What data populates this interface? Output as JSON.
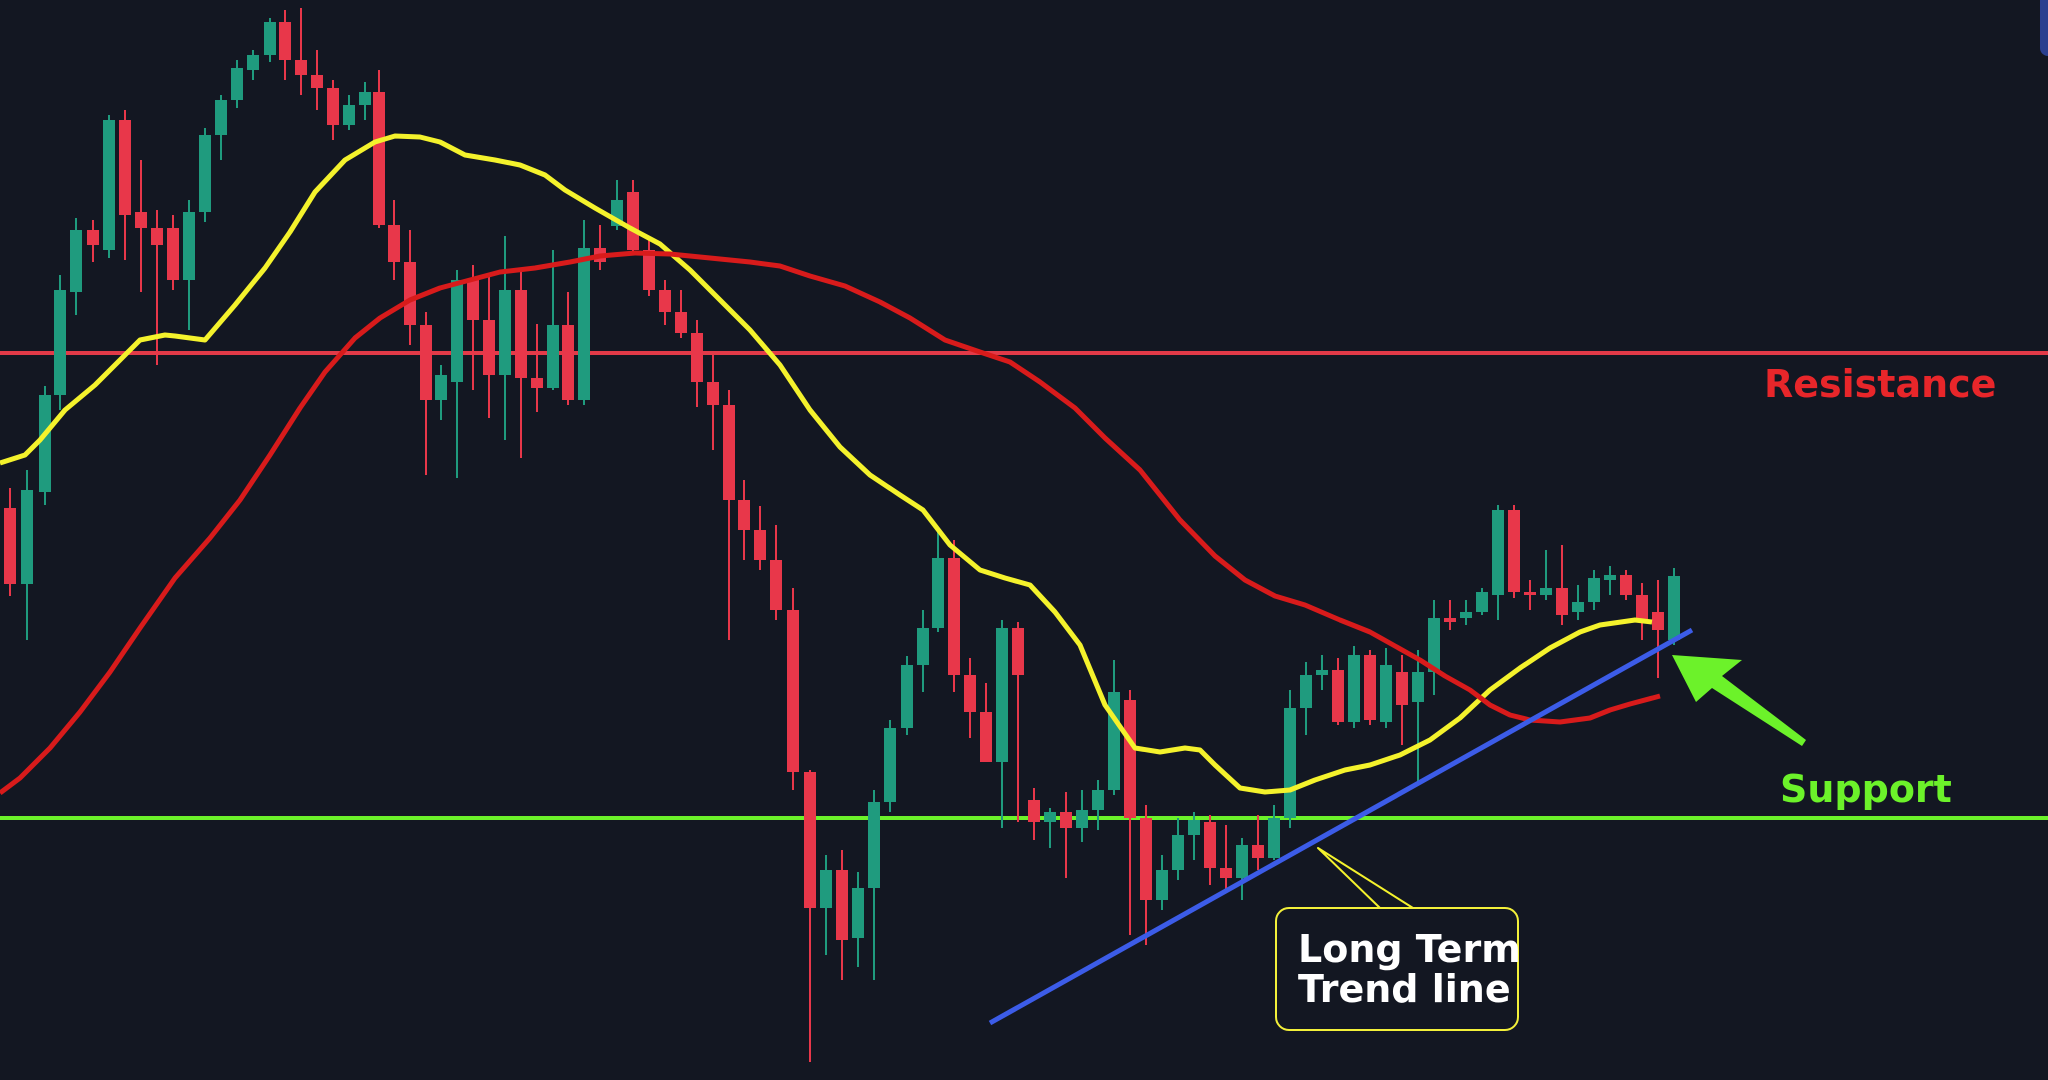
{
  "chart_data": {
    "type": "candlestick",
    "colors": {
      "background": "#131722",
      "up_candle": "#1f9b7e",
      "down_candle": "#e8374a",
      "ma_fast": "#f4f22c",
      "ma_slow": "#d81b1b",
      "resistance": "#e23a48",
      "support": "#6cf22a",
      "trendline": "#3c5ce8",
      "arrow": "#6cf22a"
    },
    "annotations": {
      "resistance_label": "Resistance",
      "support_label": "Support",
      "trendline_label_line1": "Long Term",
      "trendline_label_line2": "Trend line"
    }
  }
}
